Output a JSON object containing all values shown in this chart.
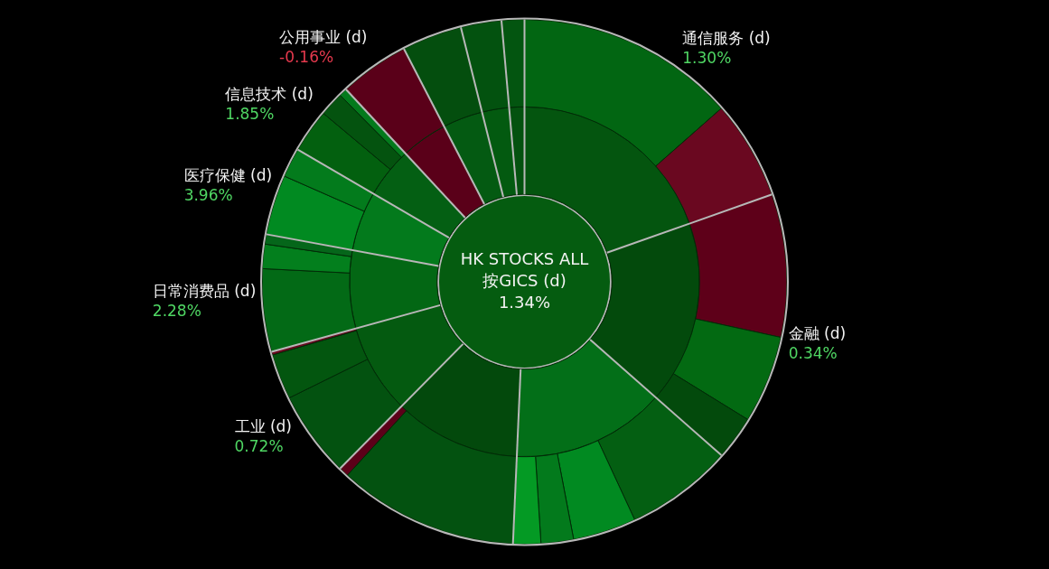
{
  "chart_data": {
    "type": "donut",
    "title": "HK STOCKS ALL",
    "subtitle": "按GICS (d)",
    "categories": [
      "通信服务 (d)",
      null,
      "金融 (d)",
      null,
      null,
      null,
      null,
      null,
      null,
      null,
      null,
      "工业 (d)",
      null,
      null,
      "日常消费品 (d)",
      null,
      null,
      "医疗保健 (d)",
      null,
      "信息技术 (d)",
      null,
      null,
      "公用事业 (d)",
      null,
      null,
      null
    ],
    "series": [
      {
        "values": [
          13.5,
          6.1,
          8.8,
          5.4,
          2.7,
          6.6,
          3.9,
          2.0,
          1.7,
          11.1,
          0.6,
          5.3,
          2.8,
          0.2,
          5.1,
          1.5,
          0.6,
          3.7,
          1.8,
          2.7,
          1.5,
          0.5,
          4.3,
          3.7,
          2.5,
          1.4
        ],
        "colors": [
          "#026612",
          "#6a0820",
          "#5e0019",
          "#036a12",
          "#034a0c",
          "#045f12",
          "#018a21",
          "#037a1c",
          "#049a24",
          "#035210",
          "#5c0019",
          "#035210",
          "#03560f",
          "#6a0820",
          "#036a16",
          "#037f1d",
          "#05661a",
          "#018a21",
          "#037b1c",
          "#03600f",
          "#04530f",
          "#037a1c",
          "#5a0019",
          "#044e0e",
          "#03520f",
          "#035510"
        ]
      },
      {
        "values": [
          19.6,
          null,
          16.9,
          null,
          null,
          14.2,
          null,
          null,
          null,
          11.7,
          null,
          8.3,
          null,
          null,
          7.2,
          null,
          null,
          5.5,
          null,
          4.7,
          null,
          null,
          4.3,
          3.7,
          2.5,
          1.4
        ],
        "colors": [
          "#04550f",
          null,
          "#034a0c",
          null,
          null,
          "#036f18",
          null,
          null,
          null,
          "#03490c",
          null,
          "#045a10",
          null,
          null,
          "#036714",
          null,
          null,
          "#037a1c",
          null,
          "#045f13",
          null,
          null,
          "#5a0019",
          "#045a12",
          "#035a10",
          "#04520f"
        ]
      }
    ],
    "annotations": [
      "1.34%",
      "1.30%",
      "0.34%",
      "0.72%",
      "2.28%",
      "3.96%",
      "1.85%",
      "-0.16%"
    ]
  }
}
